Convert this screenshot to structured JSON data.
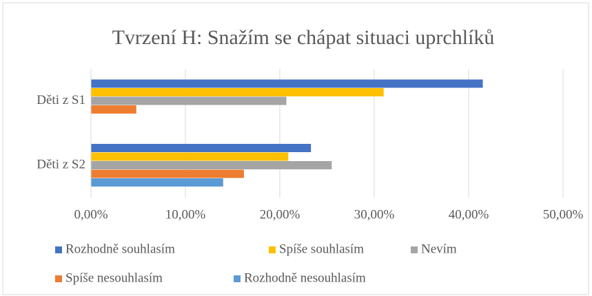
{
  "chart_data": {
    "type": "hbar",
    "title": "Tvrzení H: Snažím se chápat situaci uprchlíků",
    "categories": [
      "Děti z S1",
      "Děti z S2"
    ],
    "series": [
      {
        "name": "Rozhodně souhlasím",
        "color": "#4472c4",
        "values": [
          41.5,
          23.3
        ]
      },
      {
        "name": "Spíše souhlasím",
        "color": "#ffc000",
        "values": [
          31.0,
          20.9
        ]
      },
      {
        "name": "Nevím",
        "color": "#a5a5a5",
        "values": [
          20.7,
          25.5
        ]
      },
      {
        "name": "Spíše nesouhlasím",
        "color": "#ed7d31",
        "values": [
          4.8,
          16.2
        ]
      },
      {
        "name": "Rozhodně nesouhlasím",
        "color": "#5b9bd5",
        "values": [
          0,
          14.0
        ]
      }
    ],
    "xlim": [
      0,
      50
    ],
    "xticks": [
      {
        "value": 0,
        "label": "0,00%"
      },
      {
        "value": 10,
        "label": "10,00%"
      },
      {
        "value": 20,
        "label": "20,00%"
      },
      {
        "value": 30,
        "label": "30,00%"
      },
      {
        "value": 40,
        "label": "40,00%"
      },
      {
        "value": 50,
        "label": "50,00%"
      }
    ],
    "grid": true
  }
}
